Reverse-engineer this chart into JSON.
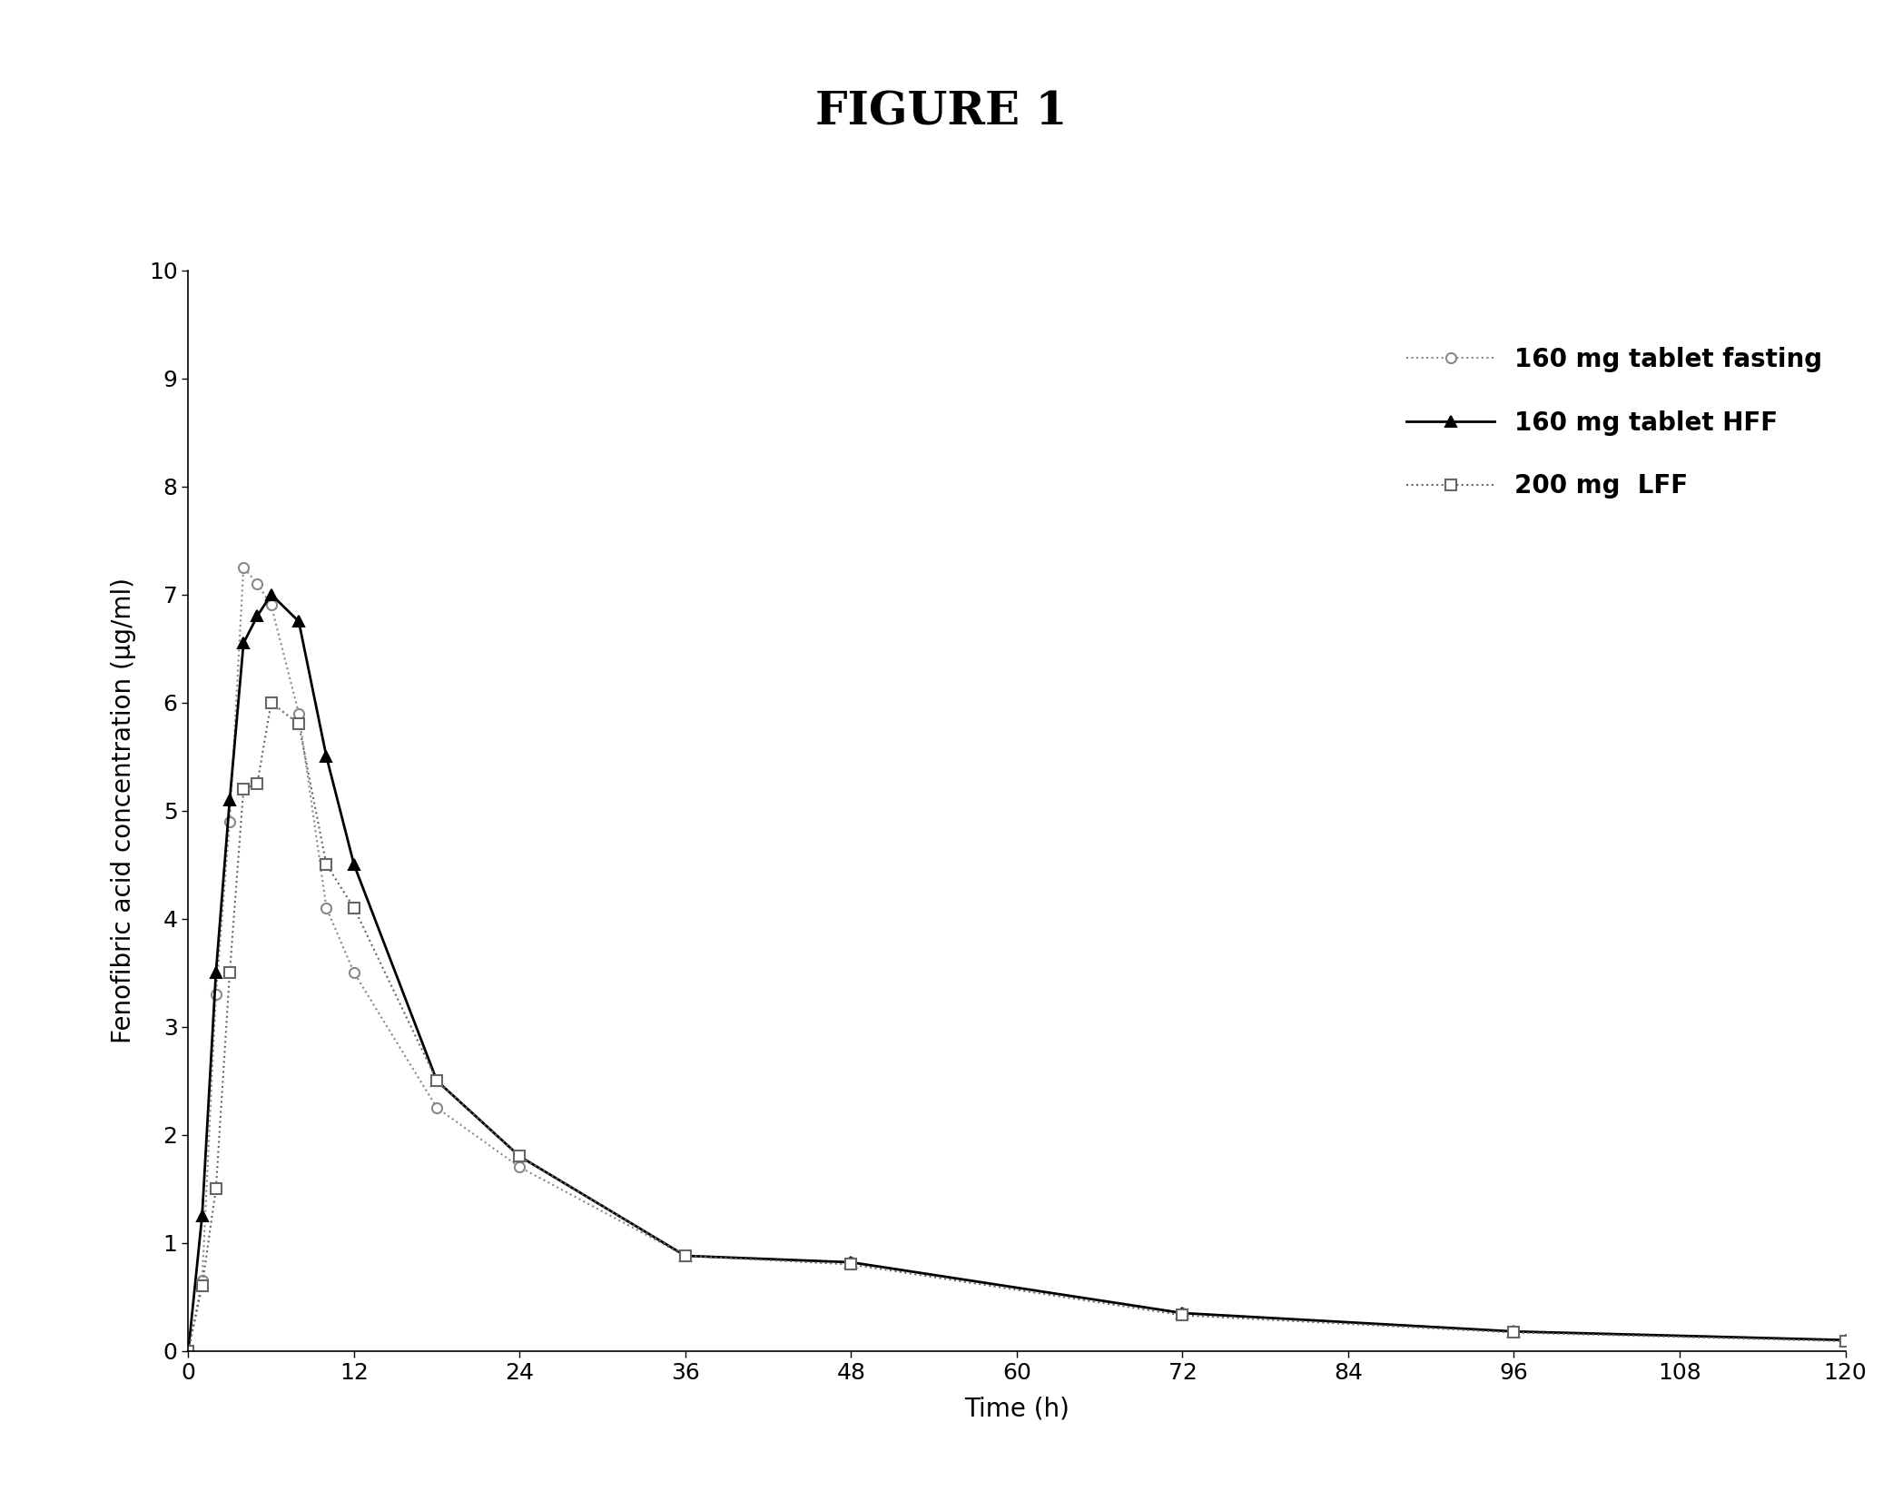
{
  "title": "FIGURE 1",
  "xlabel": "Time (h)",
  "ylabel": "Fenofibric acid concentration (μg/ml)",
  "xlim": [
    0,
    120
  ],
  "ylim": [
    0,
    10
  ],
  "xticks": [
    0,
    12,
    24,
    36,
    48,
    60,
    72,
    84,
    96,
    108,
    120
  ],
  "yticks": [
    0,
    1,
    2,
    3,
    4,
    5,
    6,
    7,
    8,
    9,
    10
  ],
  "series": [
    {
      "label": "160 mg tablet fasting",
      "x": [
        0,
        1,
        2,
        3,
        4,
        5,
        6,
        8,
        10,
        12,
        18,
        24,
        36,
        48,
        72,
        96,
        120
      ],
      "y": [
        0.0,
        0.65,
        3.3,
        4.9,
        7.25,
        7.1,
        6.9,
        5.9,
        4.1,
        3.5,
        2.25,
        1.7,
        0.88,
        0.82,
        0.35,
        0.18,
        0.1
      ],
      "color": "#888888",
      "linestyle": "dotted",
      "marker": "o",
      "marker_fill": "white",
      "linewidth": 1.5,
      "markersize": 8
    },
    {
      "label": "160 mg tablet HFF",
      "x": [
        0,
        1,
        2,
        3,
        4,
        5,
        6,
        8,
        10,
        12,
        18,
        24,
        36,
        48,
        72,
        96,
        120
      ],
      "y": [
        0.0,
        1.25,
        3.5,
        5.1,
        6.55,
        6.8,
        7.0,
        6.75,
        5.5,
        4.5,
        2.5,
        1.8,
        0.88,
        0.82,
        0.35,
        0.18,
        0.1
      ],
      "color": "#000000",
      "linestyle": "solid",
      "marker": "^",
      "marker_fill": "black",
      "linewidth": 2.0,
      "markersize": 9
    },
    {
      "label": "200 mg  LFF",
      "x": [
        0,
        1,
        2,
        3,
        4,
        5,
        6,
        8,
        10,
        12,
        18,
        24,
        36,
        48,
        72,
        96,
        120
      ],
      "y": [
        0.0,
        0.6,
        1.5,
        3.5,
        5.2,
        5.25,
        6.0,
        5.8,
        4.5,
        4.1,
        2.5,
        1.8,
        0.88,
        0.8,
        0.33,
        0.17,
        0.09
      ],
      "color": "#666666",
      "linestyle": "dotted",
      "marker": "s",
      "marker_fill": "white",
      "linewidth": 1.5,
      "markersize": 8
    }
  ],
  "background_color": "#ffffff",
  "title_fontsize": 36,
  "axis_label_fontsize": 20,
  "tick_fontsize": 18,
  "legend_fontsize": 20
}
